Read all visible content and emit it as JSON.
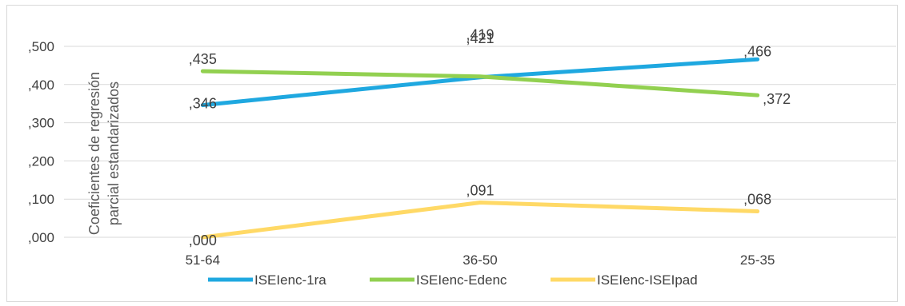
{
  "chart_data": {
    "type": "line",
    "categories": [
      "51-64",
      "36-50",
      "25-35"
    ],
    "ylabel_lines": [
      "Coeficientes de regresión",
      "parcial estandarizados"
    ],
    "ylim": [
      0,
      0.5
    ],
    "yticks": [
      {
        "value": 0.0,
        "label": ",000"
      },
      {
        "value": 0.1,
        "label": ",100"
      },
      {
        "value": 0.2,
        "label": ",200"
      },
      {
        "value": 0.3,
        "label": ",300"
      },
      {
        "value": 0.4,
        "label": ",400"
      },
      {
        "value": 0.5,
        "label": ",500"
      }
    ],
    "grid": true,
    "legend_position": "bottom",
    "series": [
      {
        "name": "ISEIenc-1ra",
        "color": "#1fa8e0",
        "values": [
          0.346,
          0.419,
          0.466
        ],
        "labels": [
          ",346",
          ",419",
          ",466"
        ]
      },
      {
        "name": "ISEIenc-Edenc",
        "color": "#92d050",
        "values": [
          0.435,
          0.421,
          0.372
        ],
        "labels": [
          ",435",
          ",421",
          ",372"
        ]
      },
      {
        "name": "ISEIenc-ISEIpad",
        "color": "#ffd966",
        "values": [
          0.0,
          0.091,
          0.068
        ],
        "labels": [
          ",000",
          ",091",
          ",068"
        ]
      }
    ]
  }
}
